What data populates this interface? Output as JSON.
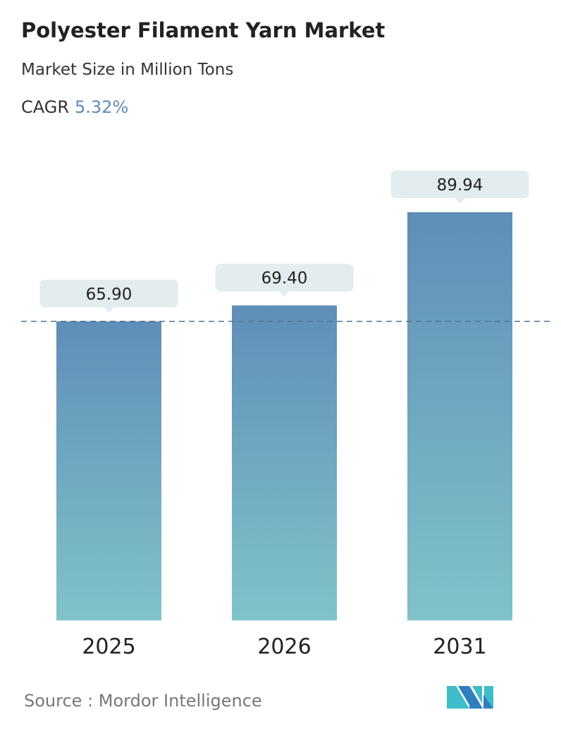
{
  "title": "Polyester Filament Yarn Market",
  "subtitle": "Market Size in Million Tons",
  "cagr_label": "CAGR",
  "cagr_value": "5.32%",
  "source": "Source :  Mordor Intelligence",
  "colors": {
    "bar_top": "#5f8eb8",
    "bar_bottom": "#80c3c9",
    "callout": "#e3ecee",
    "accent": "#5b8db8"
  },
  "chart_data": {
    "type": "bar",
    "categories": [
      "2025",
      "2026",
      "2031"
    ],
    "values": [
      65.9,
      69.4,
      89.94
    ],
    "labels": [
      "65.90",
      "69.40",
      "89.94"
    ],
    "title": "Polyester Filament Yarn Market",
    "ylabel": "Market Size in Million Tons",
    "reference_line": 65.9,
    "grid": false
  }
}
